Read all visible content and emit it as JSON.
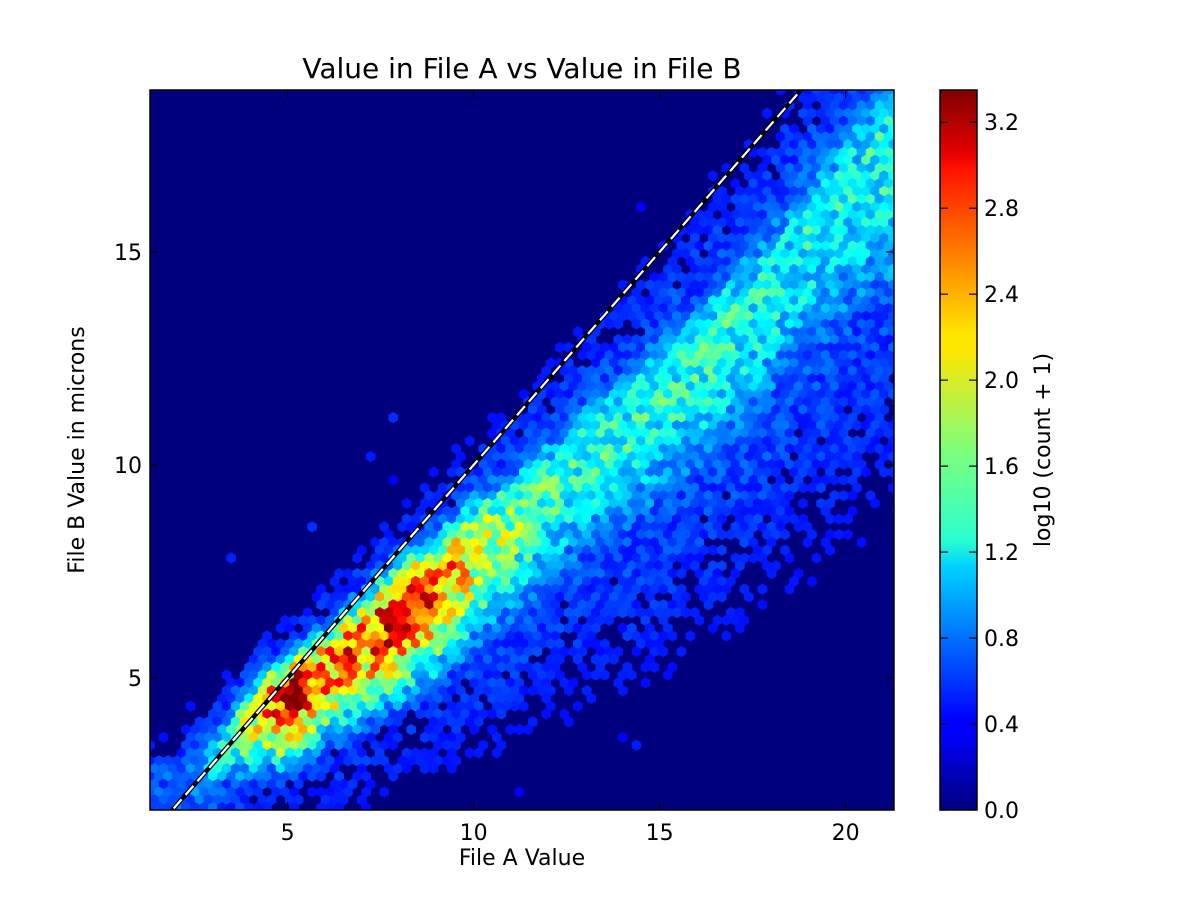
{
  "chart_data": {
    "type": "heatmap",
    "subtype": "hexbin",
    "title": "Value in File A vs Value in File B",
    "xlabel": "File A Value",
    "ylabel": "File B Value in microns",
    "xlim": [
      1.3,
      21.3
    ],
    "ylim": [
      1.9,
      18.8
    ],
    "xticks": [
      5,
      10,
      15,
      20
    ],
    "yticks": [
      5,
      10,
      15
    ],
    "grid": false,
    "colormap": "jet",
    "background_color": "#00007f",
    "colorbar": {
      "label": "log10 (count + 1)",
      "range": [
        0.0,
        3.35
      ],
      "ticks": [
        "0.0",
        "0.4",
        "0.8",
        "1.2",
        "1.6",
        "2.0",
        "2.4",
        "2.8",
        "3.2"
      ]
    },
    "reference_line": {
      "style": "dashed",
      "color": "#ffffff",
      "slope": 1,
      "intercept": 0
    },
    "density_ridge": [
      {
        "x": 2.0,
        "y": 2.2,
        "log_count": 0.6
      },
      {
        "x": 3.5,
        "y": 3.7,
        "log_count": 1.5
      },
      {
        "x": 4.5,
        "y": 4.4,
        "log_count": 2.6
      },
      {
        "x": 5.0,
        "y": 4.5,
        "log_count": 3.3
      },
      {
        "x": 6.0,
        "y": 5.2,
        "log_count": 2.6
      },
      {
        "x": 7.0,
        "y": 5.9,
        "log_count": 2.7
      },
      {
        "x": 8.0,
        "y": 6.6,
        "log_count": 3.0
      },
      {
        "x": 9.0,
        "y": 7.2,
        "log_count": 2.6
      },
      {
        "x": 10.0,
        "y": 8.0,
        "log_count": 2.1
      },
      {
        "x": 11.0,
        "y": 8.6,
        "log_count": 1.7
      },
      {
        "x": 12.0,
        "y": 9.4,
        "log_count": 1.5
      },
      {
        "x": 13.0,
        "y": 10.2,
        "log_count": 1.4
      },
      {
        "x": 14.0,
        "y": 10.8,
        "log_count": 1.4
      },
      {
        "x": 15.0,
        "y": 11.6,
        "log_count": 1.4
      },
      {
        "x": 16.0,
        "y": 12.4,
        "log_count": 1.4
      },
      {
        "x": 17.0,
        "y": 13.3,
        "log_count": 1.4
      },
      {
        "x": 18.0,
        "y": 14.2,
        "log_count": 1.3
      },
      {
        "x": 19.0,
        "y": 15.3,
        "log_count": 1.3
      },
      {
        "x": 20.0,
        "y": 16.3,
        "log_count": 1.3
      },
      {
        "x": 21.0,
        "y": 17.3,
        "log_count": 1.4
      }
    ]
  }
}
